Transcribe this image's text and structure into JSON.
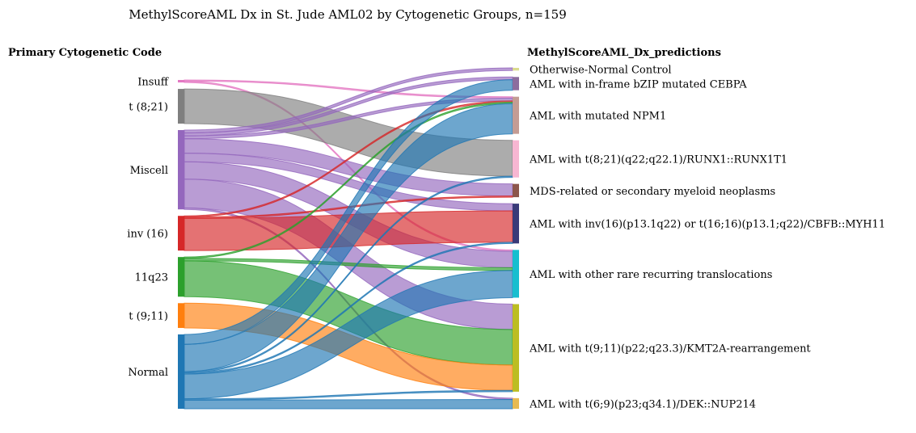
{
  "chart_data": {
    "type": "sankey",
    "title": "MethylScoreAML Dx in St. Jude AML02 by Cytogenetic Groups, n=159",
    "left_header": "Primary Cytogenetic Code",
    "right_header": "MethylScoreAML_Dx_predictions",
    "sources": [
      {
        "id": "Insuff",
        "label": "Insuff",
        "color": "#e377c2",
        "value": 1
      },
      {
        "id": "t821",
        "label": "t (8;21)",
        "color": "#7f7f7f",
        "value": 14
      },
      {
        "id": "Miscell",
        "label": "Miscell",
        "color": "#9467bd",
        "value": 32
      },
      {
        "id": "inv16",
        "label": "inv (16)",
        "color": "#d62728",
        "value": 14
      },
      {
        "id": "11q23",
        "label": "11q23",
        "color": "#2ca02c",
        "value": 16
      },
      {
        "id": "t911",
        "label": "t (9;11)",
        "color": "#ff7f0e",
        "value": 10
      },
      {
        "id": "Normal",
        "label": "Normal",
        "color": "#1f77b4",
        "value": 30
      }
    ],
    "targets": [
      {
        "id": "ONC",
        "label": "Otherwise-Normal Control",
        "color": "#dbdb8d",
        "value": 1
      },
      {
        "id": "CEBPA",
        "label": "AML with in-frame bZIP mutated CEBPA",
        "color": "#8c6d9e",
        "value": 5
      },
      {
        "id": "NPM1",
        "label": "AML with mutated NPM1",
        "color": "#c49c94",
        "value": 14
      },
      {
        "id": "RUNX1",
        "label": "AML with t(8;21)(q22;q22.1)/RUNX1::RUNX1T1",
        "color": "#f7b6d2",
        "value": 14
      },
      {
        "id": "MDS",
        "label": "MDS-related or secondary myeloid neoplasms",
        "color": "#8c564b",
        "value": 5
      },
      {
        "id": "CBFB",
        "label": "AML with inv(16)(p13.1q22) or t(16;16)(p13.1;q22)/CBFB::MYH11",
        "color": "#393b79",
        "value": 15
      },
      {
        "id": "RARE",
        "label": "AML with other rare recurring translocations",
        "color": "#17becf",
        "value": 18
      },
      {
        "id": "KMT2A",
        "label": "AML with t(9;11)(p22;q23.3)/KMT2A-rearrangement",
        "color": "#bcbd22",
        "value": 33
      },
      {
        "id": "DEK",
        "label": "AML with t(6;9)(p23;q34.1)/DEK::NUP214",
        "color": "#e7ba52",
        "value": 4
      }
    ],
    "links": [
      {
        "source": "Insuff",
        "target": "NPM1",
        "value": 0.5
      },
      {
        "source": "Insuff",
        "target": "RARE",
        "value": 0.5
      },
      {
        "source": "t821",
        "target": "RUNX1",
        "value": 14
      },
      {
        "source": "Miscell",
        "target": "ONC",
        "value": 1
      },
      {
        "source": "Miscell",
        "target": "CEBPA",
        "value": 1
      },
      {
        "source": "Miscell",
        "target": "NPM1",
        "value": 1
      },
      {
        "source": "Miscell",
        "target": "MDS",
        "value": 5
      },
      {
        "source": "Miscell",
        "target": "CBFB",
        "value": 3
      },
      {
        "source": "Miscell",
        "target": "RARE",
        "value": 6
      },
      {
        "source": "Miscell",
        "target": "KMT2A",
        "value": 10
      },
      {
        "source": "Miscell",
        "target": "DEK",
        "value": 0.5
      },
      {
        "source": "inv16",
        "target": "NPM1",
        "value": 0.5
      },
      {
        "source": "inv16",
        "target": "MDS",
        "value": 0.5
      },
      {
        "source": "inv16",
        "target": "CBFB",
        "value": 13
      },
      {
        "source": "11q23",
        "target": "NPM1",
        "value": 0.5
      },
      {
        "source": "11q23",
        "target": "RARE",
        "value": 1
      },
      {
        "source": "11q23",
        "target": "KMT2A",
        "value": 14
      },
      {
        "source": "t911",
        "target": "KMT2A",
        "value": 10
      },
      {
        "source": "Normal",
        "target": "CEBPA",
        "value": 4
      },
      {
        "source": "Normal",
        "target": "NPM1",
        "value": 11
      },
      {
        "source": "Normal",
        "target": "RUNX1",
        "value": 0.5
      },
      {
        "source": "Normal",
        "target": "CBFB",
        "value": 0.5
      },
      {
        "source": "Normal",
        "target": "RARE",
        "value": 10
      },
      {
        "source": "Normal",
        "target": "KMT2A",
        "value": 0.5
      },
      {
        "source": "Normal",
        "target": "DEK",
        "value": 3.5
      }
    ]
  }
}
